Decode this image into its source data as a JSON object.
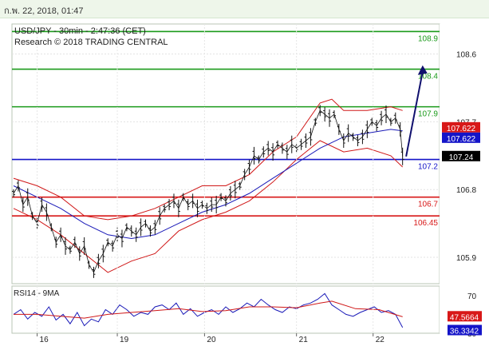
{
  "topbar": {
    "date_text": "ก.พ. 22, 2018, 01:47"
  },
  "chart_data": {
    "type": "line",
    "title": "USD/JPY - 30min - 2:47:36 (CET)",
    "subtitle": "Research © 2018 TRADING CENTRAL",
    "ylim": [
      105.55,
      109.0
    ],
    "y_ticks": [
      105.9,
      106.8,
      107.7,
      108.6
    ],
    "x_labels": [
      "16",
      "19",
      "20",
      "21",
      "22"
    ],
    "levels": [
      {
        "value": 108.9,
        "label": "108.9",
        "color": "#1a9a1a",
        "kind": "resistance"
      },
      {
        "value": 108.4,
        "label": "108.4",
        "color": "#1a9a1a",
        "kind": "resistance"
      },
      {
        "value": 107.9,
        "label": "107.9",
        "color": "#1a9a1a",
        "kind": "resistance"
      },
      {
        "value": 107.2,
        "label": "107.2",
        "color": "#1414c8",
        "kind": "pivot"
      },
      {
        "value": 106.7,
        "label": "106.7",
        "color": "#d81818",
        "kind": "support"
      },
      {
        "value": 106.45,
        "label": "106.45",
        "color": "#d81818",
        "kind": "support"
      }
    ],
    "price_tags": [
      {
        "value": 107.622,
        "label": "107.622",
        "color": "#d81818"
      },
      {
        "value": 107.622,
        "label": "107.622",
        "color": "#1414c8",
        "offset": 1
      },
      {
        "value": 107.24,
        "label": "107.24",
        "color": "#000000"
      }
    ],
    "price_path": [
      [
        0,
        106.75
      ],
      [
        4,
        106.85
      ],
      [
        8,
        106.6
      ],
      [
        12,
        106.7
      ],
      [
        16,
        106.45
      ],
      [
        20,
        106.35
      ],
      [
        24,
        106.6
      ],
      [
        28,
        106.5
      ],
      [
        32,
        106.3
      ],
      [
        36,
        106.1
      ],
      [
        40,
        106.2
      ],
      [
        44,
        106.05
      ],
      [
        48,
        106.0
      ],
      [
        52,
        106.1
      ],
      [
        56,
        105.95
      ],
      [
        60,
        106.05
      ],
      [
        64,
        105.8
      ],
      [
        68,
        105.7
      ],
      [
        72,
        105.85
      ],
      [
        76,
        105.95
      ],
      [
        80,
        106.1
      ],
      [
        84,
        106.05
      ],
      [
        88,
        106.2
      ],
      [
        92,
        106.15
      ],
      [
        96,
        106.3
      ],
      [
        100,
        106.25
      ],
      [
        104,
        106.2
      ],
      [
        108,
        106.3
      ],
      [
        112,
        106.35
      ],
      [
        116,
        106.25
      ],
      [
        120,
        106.3
      ],
      [
        124,
        106.45
      ],
      [
        128,
        106.55
      ],
      [
        132,
        106.6
      ],
      [
        136,
        106.65
      ],
      [
        140,
        106.55
      ],
      [
        144,
        106.7
      ],
      [
        148,
        106.6
      ],
      [
        152,
        106.65
      ],
      [
        156,
        106.55
      ],
      [
        160,
        106.6
      ],
      [
        164,
        106.55
      ],
      [
        168,
        106.6
      ],
      [
        172,
        106.6
      ],
      [
        176,
        106.7
      ],
      [
        180,
        106.65
      ],
      [
        184,
        106.75
      ],
      [
        188,
        106.8
      ],
      [
        192,
        106.85
      ],
      [
        196,
        107.0
      ],
      [
        200,
        107.1
      ],
      [
        204,
        107.25
      ],
      [
        208,
        107.2
      ],
      [
        212,
        107.3
      ],
      [
        216,
        107.35
      ],
      [
        220,
        107.3
      ],
      [
        224,
        107.4
      ],
      [
        228,
        107.35
      ],
      [
        232,
        107.3
      ],
      [
        236,
        107.4
      ],
      [
        240,
        107.35
      ],
      [
        244,
        107.4
      ],
      [
        248,
        107.45
      ],
      [
        252,
        107.5
      ],
      [
        256,
        107.7
      ],
      [
        260,
        107.85
      ],
      [
        264,
        107.8
      ],
      [
        268,
        107.75
      ],
      [
        272,
        107.8
      ],
      [
        276,
        107.6
      ],
      [
        280,
        107.45
      ],
      [
        284,
        107.55
      ],
      [
        288,
        107.5
      ],
      [
        292,
        107.45
      ],
      [
        296,
        107.5
      ],
      [
        300,
        107.6
      ],
      [
        304,
        107.7
      ],
      [
        308,
        107.65
      ],
      [
        312,
        107.75
      ],
      [
        316,
        107.8
      ],
      [
        320,
        107.7
      ],
      [
        324,
        107.75
      ],
      [
        328,
        107.6
      ],
      [
        330,
        107.24
      ]
    ],
    "ma_path": [
      [
        0,
        106.85
      ],
      [
        20,
        106.7
      ],
      [
        40,
        106.55
      ],
      [
        60,
        106.35
      ],
      [
        80,
        106.2
      ],
      [
        100,
        106.15
      ],
      [
        120,
        106.2
      ],
      [
        140,
        106.35
      ],
      [
        160,
        106.5
      ],
      [
        180,
        106.6
      ],
      [
        200,
        106.75
      ],
      [
        220,
        106.95
      ],
      [
        240,
        107.15
      ],
      [
        260,
        107.35
      ],
      [
        280,
        107.5
      ],
      [
        300,
        107.55
      ],
      [
        320,
        107.6
      ],
      [
        330,
        107.58
      ]
    ],
    "upper_band": [
      [
        0,
        106.95
      ],
      [
        20,
        106.85
      ],
      [
        40,
        106.7
      ],
      [
        60,
        106.45
      ],
      [
        80,
        106.4
      ],
      [
        100,
        106.45
      ],
      [
        120,
        106.55
      ],
      [
        140,
        106.7
      ],
      [
        160,
        106.85
      ],
      [
        180,
        106.85
      ],
      [
        200,
        107.0
      ],
      [
        220,
        107.3
      ],
      [
        240,
        107.5
      ],
      [
        260,
        107.95
      ],
      [
        270,
        108.0
      ],
      [
        280,
        107.85
      ],
      [
        300,
        107.85
      ],
      [
        320,
        107.9
      ],
      [
        330,
        107.85
      ]
    ],
    "lower_band": [
      [
        0,
        106.55
      ],
      [
        20,
        106.4
      ],
      [
        40,
        106.2
      ],
      [
        60,
        105.95
      ],
      [
        80,
        105.7
      ],
      [
        100,
        105.85
      ],
      [
        120,
        105.95
      ],
      [
        140,
        106.25
      ],
      [
        160,
        106.4
      ],
      [
        180,
        106.5
      ],
      [
        200,
        106.65
      ],
      [
        220,
        106.9
      ],
      [
        240,
        107.2
      ],
      [
        260,
        107.45
      ],
      [
        280,
        107.3
      ],
      [
        300,
        107.35
      ],
      [
        320,
        107.25
      ],
      [
        330,
        107.1
      ]
    ],
    "forecast_arrow": {
      "from": [
        333,
        107.24
      ],
      "to": [
        347,
        108.45
      ],
      "color": "#10106e"
    },
    "rsi": {
      "label": "RSI14 - 9MA",
      "ylim": [
        30,
        80
      ],
      "ticks": [
        30,
        70
      ],
      "value_tags": [
        {
          "value": 47.5664,
          "label": "47.5664",
          "color": "#d81818"
        },
        {
          "value": 36.3342,
          "label": "36.3342",
          "color": "#1414c8"
        }
      ],
      "rsi_line": [
        [
          0,
          50
        ],
        [
          6,
          55
        ],
        [
          12,
          45
        ],
        [
          18,
          52
        ],
        [
          24,
          48
        ],
        [
          30,
          58
        ],
        [
          36,
          44
        ],
        [
          42,
          50
        ],
        [
          48,
          40
        ],
        [
          54,
          52
        ],
        [
          60,
          38
        ],
        [
          66,
          45
        ],
        [
          72,
          42
        ],
        [
          78,
          55
        ],
        [
          84,
          50
        ],
        [
          90,
          60
        ],
        [
          96,
          55
        ],
        [
          102,
          48
        ],
        [
          108,
          52
        ],
        [
          114,
          50
        ],
        [
          120,
          58
        ],
        [
          126,
          60
        ],
        [
          132,
          55
        ],
        [
          138,
          62
        ],
        [
          144,
          50
        ],
        [
          150,
          56
        ],
        [
          156,
          48
        ],
        [
          162,
          52
        ],
        [
          168,
          55
        ],
        [
          174,
          50
        ],
        [
          180,
          58
        ],
        [
          186,
          52
        ],
        [
          192,
          56
        ],
        [
          198,
          62
        ],
        [
          204,
          58
        ],
        [
          210,
          66
        ],
        [
          216,
          60
        ],
        [
          222,
          55
        ],
        [
          228,
          52
        ],
        [
          234,
          58
        ],
        [
          240,
          56
        ],
        [
          246,
          60
        ],
        [
          252,
          62
        ],
        [
          258,
          66
        ],
        [
          264,
          72
        ],
        [
          270,
          60
        ],
        [
          276,
          55
        ],
        [
          282,
          50
        ],
        [
          288,
          48
        ],
        [
          294,
          52
        ],
        [
          300,
          55
        ],
        [
          306,
          58
        ],
        [
          312,
          52
        ],
        [
          318,
          54
        ],
        [
          324,
          50
        ],
        [
          330,
          36
        ]
      ],
      "ma_line": [
        [
          0,
          50
        ],
        [
          20,
          50
        ],
        [
          40,
          48
        ],
        [
          60,
          46
        ],
        [
          80,
          50
        ],
        [
          100,
          52
        ],
        [
          120,
          54
        ],
        [
          140,
          56
        ],
        [
          160,
          53
        ],
        [
          180,
          54
        ],
        [
          200,
          58
        ],
        [
          220,
          58
        ],
        [
          240,
          57
        ],
        [
          260,
          62
        ],
        [
          270,
          64
        ],
        [
          290,
          56
        ],
        [
          310,
          55
        ],
        [
          330,
          47.5
        ]
      ]
    }
  }
}
